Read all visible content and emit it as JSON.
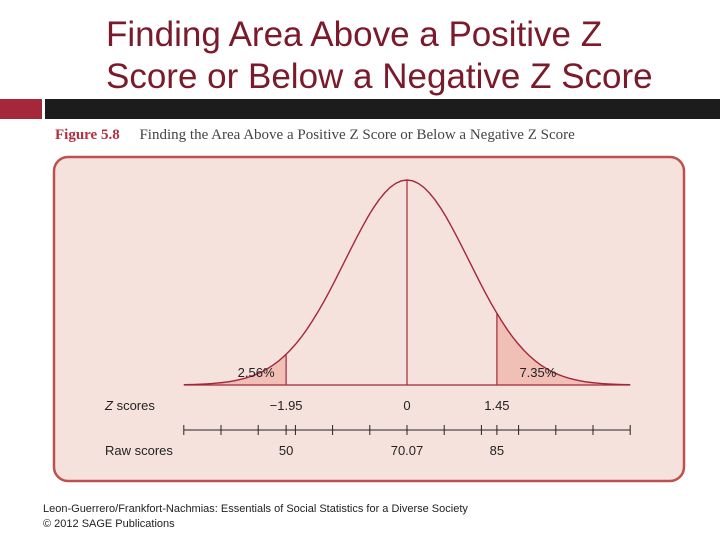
{
  "slide": {
    "title_line1": "Finding Area Above a Positive Z",
    "title_line2": "Score or Below a Negative Z Score",
    "title_color": "#7a1a2b",
    "accent_red": "#a4273a"
  },
  "figure": {
    "label": "Figure 5.8",
    "caption": "Finding the Area Above a Positive Z Score or Below a Negative Z Score",
    "panel_bg": "#f6e2dc",
    "panel_border": "#c0504d",
    "shade_color": "#f0bfb6"
  },
  "chart_data": {
    "type": "area",
    "distribution": "normal",
    "mean": 70.07,
    "row_labels": {
      "z": "Z scores",
      "raw": "Raw scores"
    },
    "z_ticks": [
      "−1.95",
      "0",
      "1.45"
    ],
    "z_values": [
      -1.95,
      0,
      1.45
    ],
    "raw_ticks": [
      "50",
      "70.07",
      "85"
    ],
    "shaded_regions": [
      {
        "label": "2.56%",
        "side": "left-tail",
        "boundary_z": -1.95
      },
      {
        "label": "7.35%",
        "side": "right-tail",
        "boundary_z": 1.45
      }
    ]
  },
  "footer": {
    "line1": "Leon-Guerrero/Frankfort-Nachmias: Essentials of Social Statistics for a Diverse Society",
    "line2": "© 2012 SAGE Publications"
  }
}
